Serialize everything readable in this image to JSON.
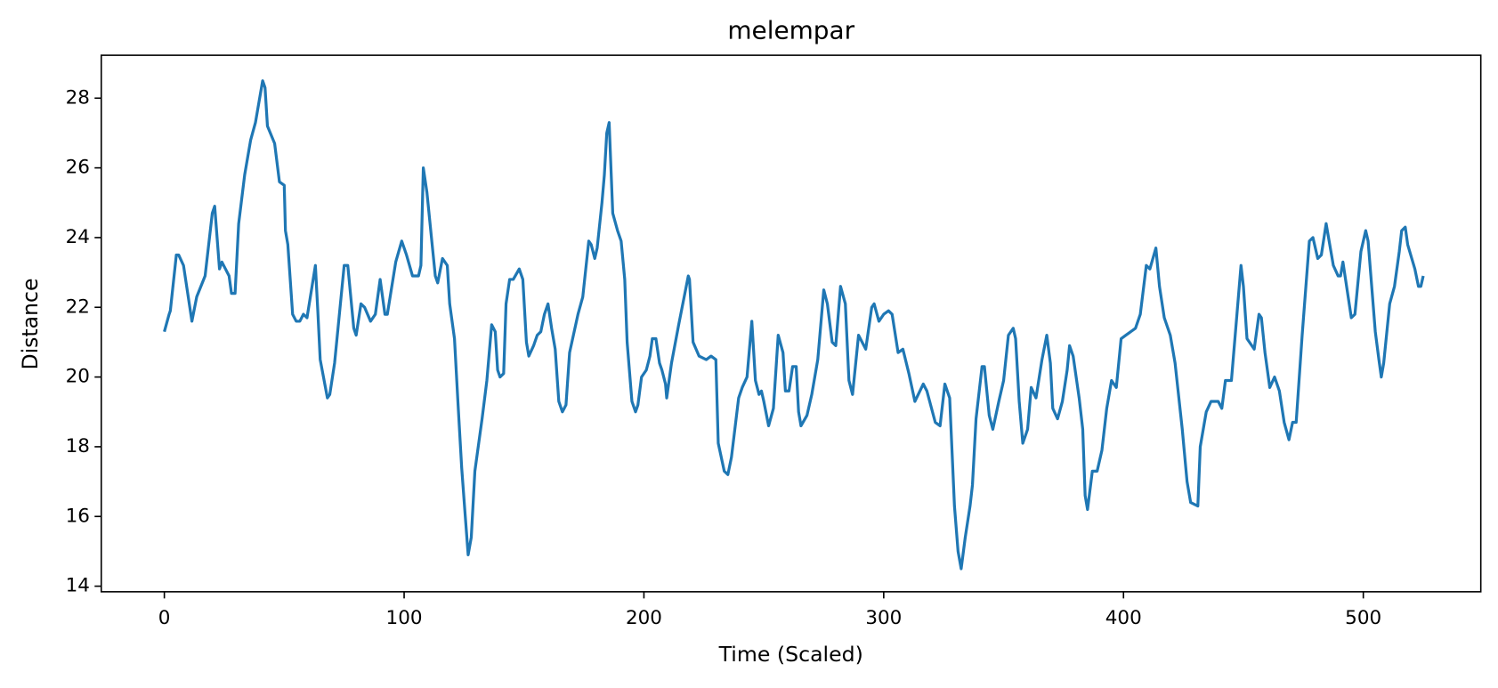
{
  "chart_data": {
    "type": "line",
    "title": "melempar",
    "x_label": "Time (Scaled)",
    "y_label": "Distance",
    "color": "#1f77b4",
    "x": [
      0,
      2,
      2.5,
      5,
      6,
      8,
      11.5,
      13.5,
      17,
      20,
      21,
      23,
      24,
      25.5,
      27,
      28,
      29.5,
      31,
      33.5,
      36,
      38,
      41,
      42,
      43,
      46,
      48,
      50,
      50.5,
      51.5,
      53.5,
      55,
      56.5,
      58,
      59.5,
      63,
      64,
      65,
      68,
      69,
      71,
      75,
      76.5,
      79,
      80,
      82,
      83.5,
      86,
      88,
      90,
      92,
      93,
      96.5,
      99,
      101,
      103.5,
      106,
      107,
      108,
      109.5,
      113,
      114,
      116,
      118,
      119,
      121,
      122.5,
      124,
      125.5,
      126.7,
      128,
      129.5,
      132.5,
      134.5,
      136.5,
      138,
      139,
      140,
      141.5,
      142.5,
      144,
      145.5,
      148,
      149.5,
      151,
      152,
      154,
      155.5,
      157,
      158.5,
      160,
      161.5,
      163,
      164.5,
      166,
      167.5,
      169,
      172.5,
      174.5,
      177,
      178,
      179.5,
      180.5,
      182.5,
      183.5,
      184.5,
      185.5,
      187,
      189,
      190.5,
      192,
      193,
      195,
      196.5,
      197.5,
      199,
      201,
      202.5,
      203.5,
      205,
      206.5,
      207.5,
      209,
      209.5,
      211.5,
      214.5,
      218.5,
      219,
      220.5,
      223,
      226,
      228,
      230,
      231,
      233.5,
      235,
      236.5,
      239.5,
      241,
      243,
      245,
      246.5,
      248,
      249,
      250,
      252,
      254,
      256,
      258,
      259,
      260.5,
      262,
      263.5,
      264.5,
      265.5,
      268,
      270,
      272.5,
      275,
      276.5,
      278.5,
      280,
      282,
      284,
      285.5,
      287,
      289.5,
      292.5,
      295,
      296,
      298,
      300,
      302,
      303.5,
      306,
      308,
      310.5,
      313,
      316.5,
      318,
      321.5,
      323.5,
      325.5,
      327.5,
      329.5,
      331,
      332.3,
      334,
      336,
      337,
      338.5,
      341,
      342,
      344,
      345.5,
      348,
      350,
      352,
      354,
      355,
      356.5,
      358,
      360,
      361.5,
      363.5,
      366,
      368,
      369.5,
      370.5,
      372.5,
      374.5,
      376.5,
      377.5,
      379,
      381.5,
      383,
      384,
      385,
      387,
      389,
      391,
      393,
      395,
      397,
      399,
      401,
      405,
      407,
      409.5,
      411,
      413.5,
      415,
      417,
      419.5,
      421.5,
      424.5,
      426.5,
      428,
      431,
      432,
      434.5,
      436.5,
      439.5,
      441,
      442.5,
      445,
      449,
      450,
      451.5,
      454.5,
      456.5,
      457.5,
      459,
      461,
      463,
      465,
      467,
      469,
      470.5,
      472,
      474.5,
      477.5,
      479,
      481,
      482.5,
      484.5,
      487.5,
      489.5,
      490.5,
      491.5,
      495,
      496.5,
      499,
      501,
      502,
      503.5,
      505,
      506.5,
      507.5,
      508.5,
      511,
      513,
      515,
      516,
      517.5,
      518.5,
      521.5,
      523,
      524,
      525
    ],
    "values": [
      21.3,
      21.8,
      21.9,
      23.5,
      23.5,
      23.2,
      21.6,
      22.3,
      22.9,
      24.7,
      24.9,
      23.1,
      23.3,
      23.1,
      22.9,
      22.4,
      22.4,
      24.4,
      25.8,
      26.8,
      27.3,
      28.5,
      28.3,
      27.2,
      26.7,
      25.6,
      25.5,
      24.2,
      23.8,
      21.8,
      21.6,
      21.6,
      21.8,
      21.7,
      23.2,
      21.9,
      20.5,
      19.4,
      19.5,
      20.4,
      23.2,
      23.2,
      21.4,
      21.2,
      22.1,
      22.0,
      21.6,
      21.8,
      22.8,
      21.8,
      21.8,
      23.3,
      23.9,
      23.5,
      22.9,
      22.9,
      23.2,
      26.0,
      25.3,
      22.9,
      22.7,
      23.4,
      23.2,
      22.1,
      21.1,
      19.2,
      17.4,
      16.0,
      14.9,
      15.4,
      17.3,
      18.8,
      19.9,
      21.5,
      21.3,
      20.2,
      20.0,
      20.1,
      22.1,
      22.8,
      22.8,
      23.1,
      22.8,
      21.0,
      20.6,
      20.9,
      21.2,
      21.3,
      21.8,
      22.1,
      21.4,
      20.8,
      19.3,
      19.0,
      19.2,
      20.7,
      21.8,
      22.3,
      23.9,
      23.8,
      23.4,
      23.7,
      25.0,
      25.8,
      27.0,
      27.3,
      24.7,
      24.2,
      23.9,
      22.8,
      21.0,
      19.3,
      19.0,
      19.2,
      20.0,
      20.2,
      20.6,
      21.1,
      21.1,
      20.4,
      20.2,
      19.8,
      19.4,
      20.4,
      21.5,
      22.9,
      22.8,
      21.0,
      20.6,
      20.5,
      20.6,
      20.5,
      18.1,
      17.3,
      17.2,
      17.7,
      19.4,
      19.7,
      20.0,
      21.6,
      19.9,
      19.5,
      19.6,
      19.3,
      18.6,
      19.1,
      21.2,
      20.7,
      19.6,
      19.6,
      20.3,
      20.3,
      19.0,
      18.6,
      18.9,
      19.5,
      20.5,
      22.5,
      22.1,
      21.0,
      20.9,
      22.6,
      22.1,
      19.9,
      19.5,
      21.2,
      20.8,
      22.0,
      22.1,
      21.6,
      21.8,
      21.9,
      21.8,
      20.7,
      20.8,
      20.1,
      19.3,
      19.8,
      19.6,
      18.7,
      18.6,
      19.8,
      19.4,
      16.3,
      15.0,
      14.5,
      15.4,
      16.3,
      16.9,
      18.8,
      20.3,
      20.3,
      18.9,
      18.5,
      19.3,
      19.9,
      21.2,
      21.4,
      21.1,
      19.3,
      18.1,
      18.5,
      19.7,
      19.4,
      20.5,
      21.2,
      20.4,
      19.1,
      18.8,
      19.3,
      20.2,
      20.9,
      20.6,
      19.4,
      18.5,
      16.6,
      16.2,
      17.3,
      17.3,
      17.9,
      19.1,
      19.9,
      19.7,
      21.1,
      21.2,
      21.4,
      21.8,
      23.2,
      23.1,
      23.7,
      22.6,
      21.7,
      21.2,
      20.4,
      18.5,
      17.0,
      16.4,
      16.3,
      18.0,
      19.0,
      19.3,
      19.3,
      19.1,
      19.9,
      19.9,
      23.2,
      22.6,
      21.1,
      20.8,
      21.8,
      21.7,
      20.7,
      19.7,
      20.0,
      19.6,
      18.7,
      18.2,
      18.7,
      18.7,
      21.2,
      23.9,
      24.0,
      23.4,
      23.5,
      24.4,
      23.2,
      22.9,
      22.9,
      23.3,
      21.7,
      21.8,
      23.6,
      24.2,
      23.9,
      22.6,
      21.3,
      20.5,
      20.0,
      20.4,
      22.1,
      22.6,
      23.6,
      24.2,
      24.3,
      23.8,
      23.1,
      22.6,
      22.6,
      22.9
    ],
    "xlim": [
      -26.3,
      549
    ],
    "ylim": [
      13.84,
      29.23
    ],
    "xticks": [
      0,
      100,
      200,
      300,
      400,
      500
    ],
    "yticks": [
      14,
      16,
      18,
      20,
      22,
      24,
      26,
      28
    ]
  }
}
